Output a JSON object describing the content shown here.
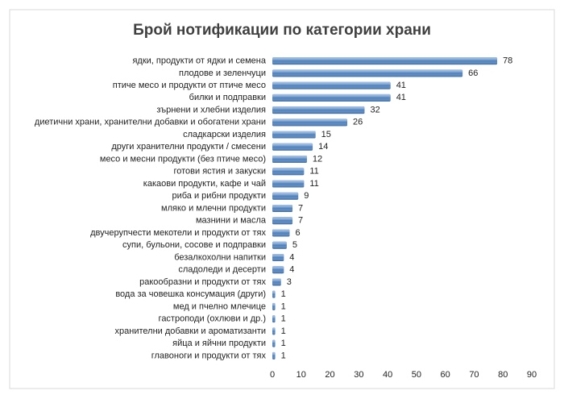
{
  "chart_data": {
    "type": "barh",
    "title": "Брой нотификации по категории храни",
    "categories": [
      "ядки, продукти от ядки и семена",
      "плодове и зеленчуци",
      "птиче месо и продукти от птиче месо",
      "билки и подправки",
      "зърнени и хлебни изделия",
      "диетични храни, хранителни добавки и обогатени храни",
      "сладкарски изделия",
      "други хранителни продукти / смесени",
      "месо и месни продукти (без птиче месо)",
      "готови ястия и закуски",
      "какаови продукти, кафе и чай",
      "риба и рибни продукти",
      "мляко и млечни продукти",
      "мазнини и масла",
      "двучерупчести мекотели и продукти от тях",
      "супи, бульони, сосове и подправки",
      "безалкохолни напитки",
      "сладоледи и десерти",
      "ракообразни и продукти от тях",
      "вода за човешка консумация (други)",
      "мед и пчелно млечице",
      "гастроподи (охлюви и др.)",
      "хранителни добавки и ароматизанти",
      "яйца и яйчни продукти",
      "главоноги и продукти от тях"
    ],
    "values": [
      78,
      66,
      41,
      41,
      32,
      26,
      15,
      14,
      12,
      11,
      11,
      9,
      7,
      7,
      6,
      5,
      4,
      4,
      3,
      1,
      1,
      1,
      1,
      1,
      1
    ],
    "color": "#4a7ebb",
    "xlim": [
      0,
      90
    ],
    "xticks": [
      0,
      10,
      20,
      30,
      40,
      50,
      60,
      70,
      80,
      90
    ]
  }
}
